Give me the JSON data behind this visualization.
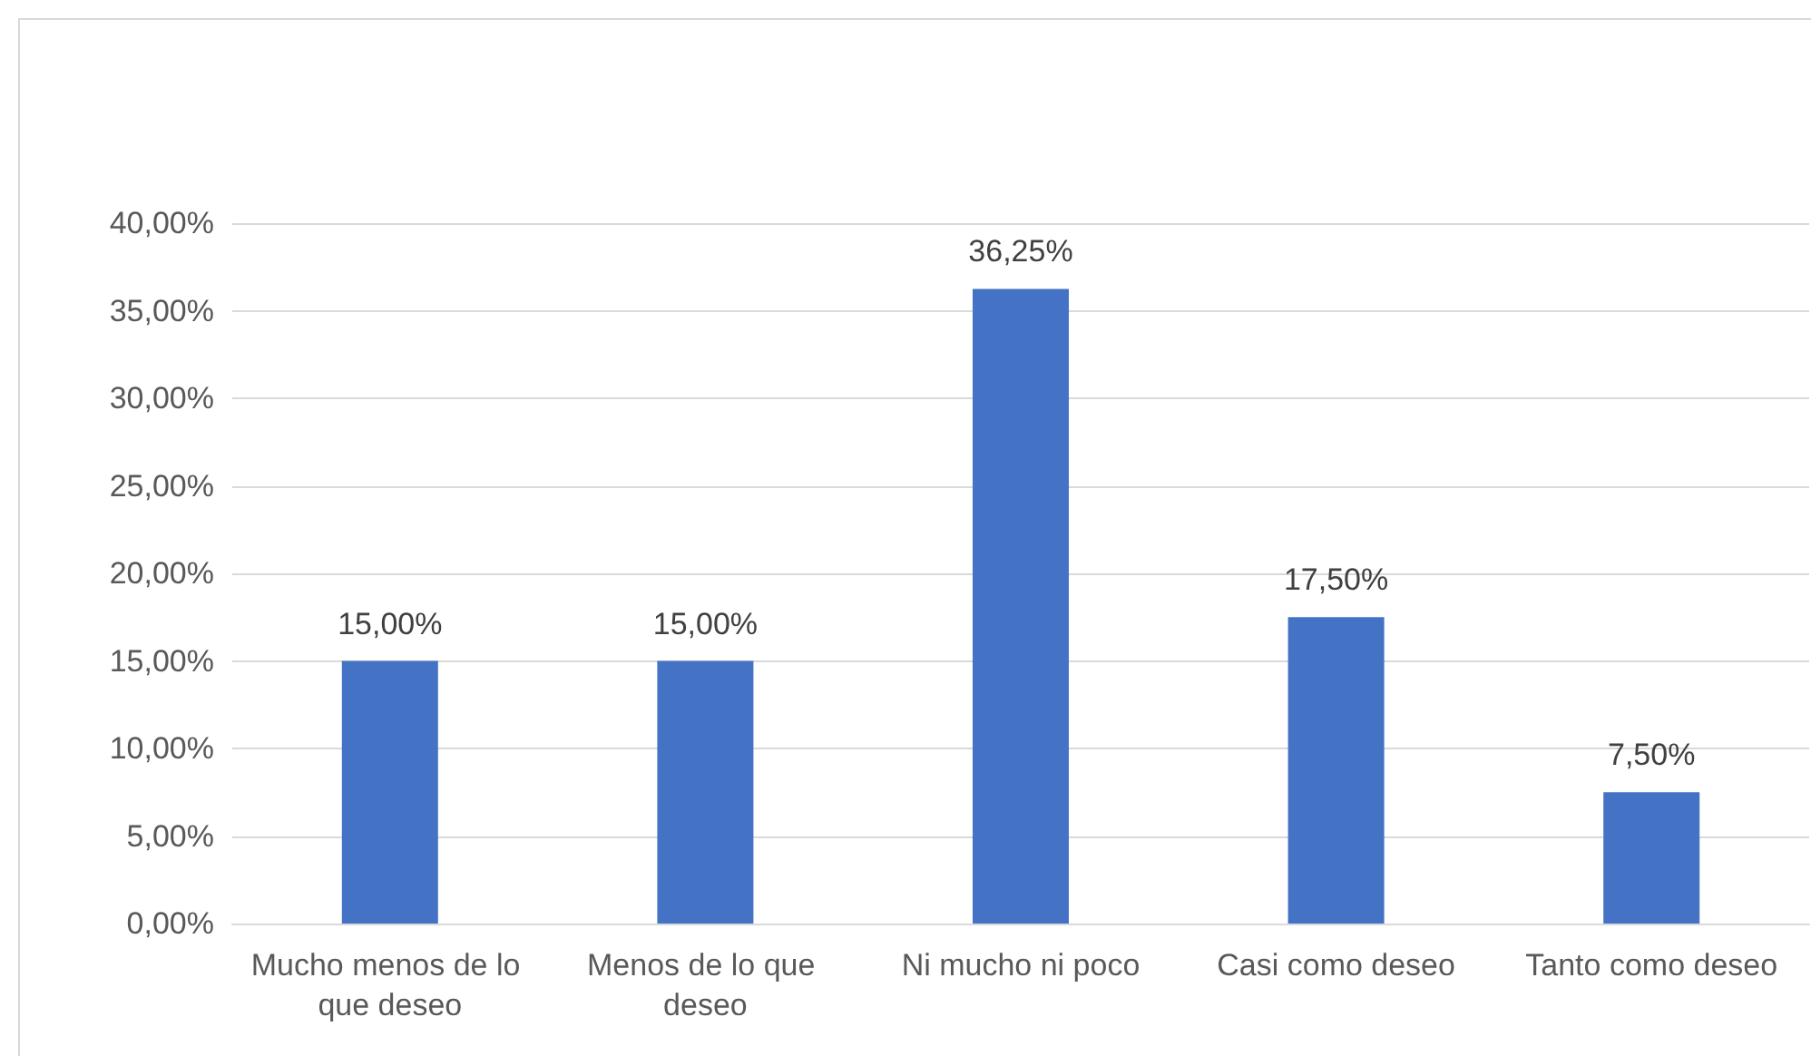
{
  "chart_data": {
    "type": "bar",
    "categories": [
      "Mucho menos de lo que deseo",
      "Menos de lo que deseo",
      "Ni mucho ni poco",
      "Casi como deseo",
      "Tanto como deseo"
    ],
    "values": [
      15,
      15,
      36.25,
      17.5,
      7.5
    ],
    "value_labels": [
      "15,00%",
      "15,00%",
      "36,25%",
      "17,50%",
      "7,50%"
    ],
    "color": "#4472c4",
    "ylim": [
      0,
      40
    ],
    "yticks": [
      {
        "value": 0,
        "label": "0,00%"
      },
      {
        "value": 5,
        "label": "5,00%"
      },
      {
        "value": 10,
        "label": "10,00%"
      },
      {
        "value": 15,
        "label": "15,00%"
      },
      {
        "value": 20,
        "label": "20,00%"
      },
      {
        "value": 25,
        "label": "25,00%"
      },
      {
        "value": 30,
        "label": "30,00%"
      },
      {
        "value": 35,
        "label": "35,00%"
      },
      {
        "value": 40,
        "label": "40,00%"
      }
    ],
    "grid": "y"
  }
}
